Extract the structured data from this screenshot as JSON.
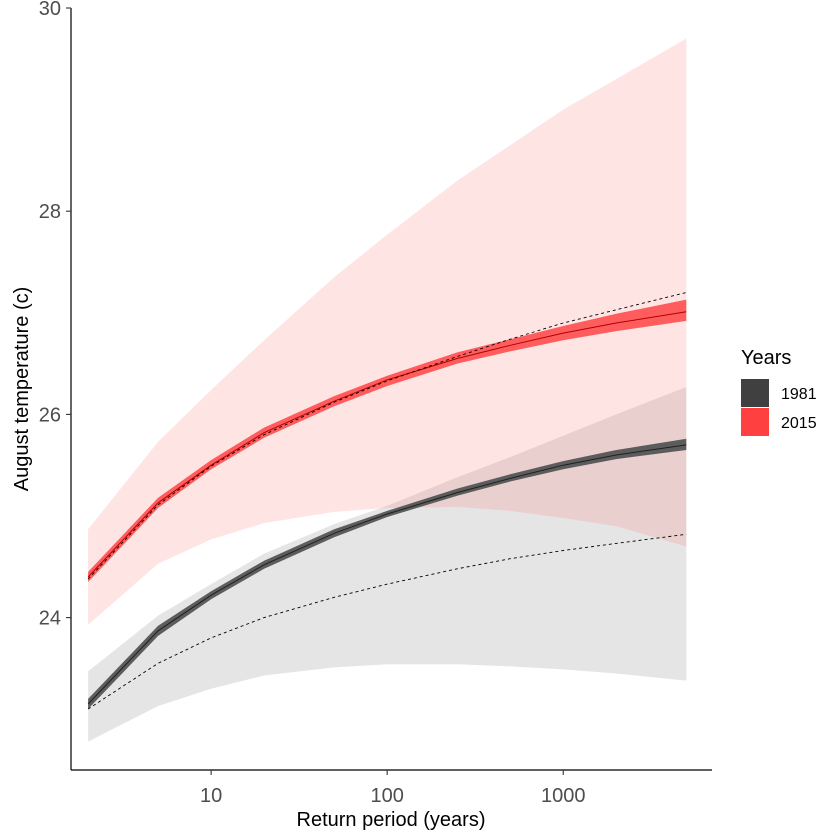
{
  "chart_data": {
    "type": "line",
    "xlabel": "Return period (years)",
    "ylabel": "August temperature (c)",
    "x_scale": "log",
    "xlim": [
      1.6,
      7000
    ],
    "ylim": [
      22.5,
      30
    ],
    "x_ticks": [
      10,
      100,
      1000
    ],
    "x_tick_labels": [
      "10",
      "100",
      "1000"
    ],
    "y_ticks": [
      24,
      26,
      28,
      30
    ],
    "y_tick_labels": [
      "24",
      "26",
      "28",
      "30"
    ],
    "grid": false,
    "legend": {
      "title": "Years",
      "position": "right",
      "entries": [
        {
          "label": "1981",
          "color": "#404040"
        },
        {
          "label": "2015",
          "color": "#ff4040"
        }
      ]
    },
    "x": [
      2,
      5,
      10,
      20,
      50,
      100,
      250,
      500,
      1000,
      2000,
      5000
    ],
    "series": [
      {
        "name": "1981",
        "color": "#404040",
        "fit": [
          23.15,
          23.87,
          24.22,
          24.52,
          24.83,
          25.02,
          25.23,
          25.37,
          25.5,
          25.6,
          25.7
        ],
        "fit_band_lower": [
          23.1,
          23.82,
          24.18,
          24.48,
          24.79,
          24.99,
          25.2,
          25.34,
          25.46,
          25.56,
          25.65
        ],
        "fit_band_upper": [
          23.2,
          23.92,
          24.26,
          24.56,
          24.87,
          25.05,
          25.27,
          25.41,
          25.54,
          25.65,
          25.76
        ],
        "ci_lower": [
          22.78,
          23.13,
          23.3,
          23.43,
          23.51,
          23.54,
          23.54,
          23.52,
          23.49,
          23.45,
          23.38
        ],
        "ci_upper": [
          23.47,
          24.02,
          24.33,
          24.63,
          24.92,
          25.1,
          25.38,
          25.58,
          25.79,
          26.0,
          26.27
        ],
        "dashed": [
          23.1,
          23.55,
          23.8,
          24.0,
          24.2,
          24.33,
          24.48,
          24.58,
          24.66,
          24.73,
          24.82
        ]
      },
      {
        "name": "2015",
        "color": "#ff4040",
        "fit": [
          24.4,
          25.13,
          25.5,
          25.82,
          26.13,
          26.34,
          26.55,
          26.68,
          26.8,
          26.9,
          27.01
        ],
        "fit_band_lower": [
          24.35,
          25.08,
          25.46,
          25.77,
          26.08,
          26.28,
          26.5,
          26.62,
          26.73,
          26.82,
          26.92
        ],
        "fit_band_upper": [
          24.45,
          25.18,
          25.55,
          25.87,
          26.18,
          26.38,
          26.61,
          26.74,
          26.87,
          26.99,
          27.13
        ],
        "ci_lower": [
          23.93,
          24.53,
          24.77,
          24.93,
          25.04,
          25.08,
          25.09,
          25.05,
          24.98,
          24.9,
          24.7
        ],
        "ci_upper": [
          24.87,
          25.73,
          26.24,
          26.73,
          27.35,
          27.77,
          28.3,
          28.65,
          29.0,
          29.3,
          29.7
        ],
        "dashed": [
          24.38,
          25.11,
          25.49,
          25.8,
          26.12,
          26.33,
          26.57,
          26.74,
          26.9,
          27.03,
          27.2
        ]
      }
    ]
  }
}
